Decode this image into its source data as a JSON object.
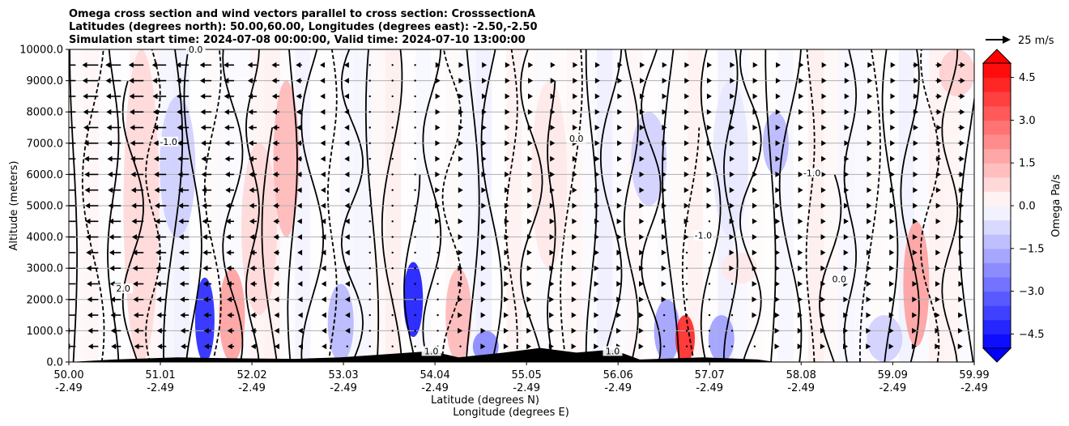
{
  "chart_data": {
    "type": "heatmap",
    "title_lines": [
      "Omega cross section and wind vectors parallel to cross section: CrosssectionA",
      "Latitudes (degrees north): 50.00,60.00, Longitudes (degrees east): -2.50,-2.50",
      "Simulation start time: 2024-07-08 00:00:00, Valid time: 2024-07-10 13:00:00"
    ],
    "xlabel": "Latitude (degrees N)",
    "xlabel2": "Longitude (degrees E)",
    "ylabel": "Altitude (meters)",
    "x_range": [
      50.0,
      59.99
    ],
    "y_range": [
      0,
      10000
    ],
    "x_ticks": [
      {
        "lat": "50.00",
        "lon": "-2.49",
        "value": 50.0
      },
      {
        "lat": "51.01",
        "lon": "-2.49",
        "value": 51.01
      },
      {
        "lat": "52.02",
        "lon": "-2.49",
        "value": 52.02
      },
      {
        "lat": "53.03",
        "lon": "-2.49",
        "value": 53.03
      },
      {
        "lat": "54.04",
        "lon": "-2.49",
        "value": 54.04
      },
      {
        "lat": "55.05",
        "lon": "-2.49",
        "value": 55.05
      },
      {
        "lat": "56.06",
        "lon": "-2.49",
        "value": 56.06
      },
      {
        "lat": "57.07",
        "lon": "-2.49",
        "value": 57.07
      },
      {
        "lat": "58.08",
        "lon": "-2.49",
        "value": 58.08
      },
      {
        "lat": "59.09",
        "lon": "-2.49",
        "value": 59.09
      },
      {
        "lat": "59.99",
        "lon": "-2.49",
        "value": 59.99
      }
    ],
    "y_ticks": [
      {
        "label": "0.0",
        "value": 0
      },
      {
        "label": "1000.0",
        "value": 1000
      },
      {
        "label": "2000.0",
        "value": 2000
      },
      {
        "label": "3000.0",
        "value": 3000
      },
      {
        "label": "4000.0",
        "value": 4000
      },
      {
        "label": "5000.0",
        "value": 5000
      },
      {
        "label": "6000.0",
        "value": 6000
      },
      {
        "label": "7000.0",
        "value": 7000
      },
      {
        "label": "8000.0",
        "value": 8000
      },
      {
        "label": "9000.0",
        "value": 9000
      },
      {
        "label": "10000.0",
        "value": 10000
      }
    ],
    "grid": "horizontal",
    "colorbar": {
      "label": "Omega Pa/s",
      "range": [
        -5.0,
        5.0
      ],
      "extend": "both",
      "levels": [
        -5.0,
        -4.5,
        -4.0,
        -3.5,
        -3.0,
        -2.5,
        -2.0,
        -1.5,
        -1.0,
        -0.5,
        0.0,
        0.5,
        1.0,
        1.5,
        2.0,
        2.5,
        3.0,
        3.5,
        4.0,
        4.5,
        5.0
      ],
      "tick_labels": [
        {
          "label": "4.5",
          "value": 4.5
        },
        {
          "label": "3.0",
          "value": 3.0
        },
        {
          "label": "1.5",
          "value": 1.5
        },
        {
          "label": "0.0",
          "value": 0.0
        },
        {
          "label": "−1.5",
          "value": -1.5
        },
        {
          "label": "−3.0",
          "value": -3.0
        },
        {
          "label": "−4.5",
          "value": -4.5
        }
      ],
      "colors": {
        "negative_max": "#0000ff",
        "positive_max": "#ff0000",
        "neutral": "#ffffff"
      }
    },
    "quiver_key": {
      "label": "25 m/s",
      "speed": 25
    },
    "omega_cells": [
      {
        "lat": 51.5,
        "alt_min": 0,
        "alt_max": 2700,
        "value": -4.5
      },
      {
        "lat": 51.2,
        "alt_min": 4000,
        "alt_max": 8500,
        "value": -1.0
      },
      {
        "lat": 50.8,
        "alt_min": 0,
        "alt_max": 10000,
        "value": 0.8
      },
      {
        "lat": 51.8,
        "alt_min": 0,
        "alt_max": 3000,
        "value": 2.0
      },
      {
        "lat": 52.4,
        "alt_min": 4000,
        "alt_max": 9000,
        "value": 1.5
      },
      {
        "lat": 52.1,
        "alt_min": 1500,
        "alt_max": 7000,
        "value": 0.8
      },
      {
        "lat": 53.0,
        "alt_min": 0,
        "alt_max": 2500,
        "value": -1.5
      },
      {
        "lat": 53.8,
        "alt_min": 800,
        "alt_max": 3200,
        "value": -4.8
      },
      {
        "lat": 54.3,
        "alt_min": 0,
        "alt_max": 3000,
        "value": 1.5
      },
      {
        "lat": 54.6,
        "alt_min": 0,
        "alt_max": 1000,
        "value": -2.5
      },
      {
        "lat": 55.3,
        "alt_min": 3000,
        "alt_max": 9000,
        "value": 0.5
      },
      {
        "lat": 56.4,
        "alt_min": 5000,
        "alt_max": 8000,
        "value": -1.0
      },
      {
        "lat": 56.6,
        "alt_min": 0,
        "alt_max": 2000,
        "value": -2.0
      },
      {
        "lat": 56.8,
        "alt_min": 0,
        "alt_max": 1500,
        "value": 4.5
      },
      {
        "lat": 57.2,
        "alt_min": 0,
        "alt_max": 1500,
        "value": -2.0
      },
      {
        "lat": 57.3,
        "alt_min": 4000,
        "alt_max": 9000,
        "value": -0.5
      },
      {
        "lat": 57.8,
        "alt_min": 6000,
        "alt_max": 8000,
        "value": -1.5
      },
      {
        "lat": 57.4,
        "alt_min": 2500,
        "alt_max": 3500,
        "value": 0.5
      },
      {
        "lat": 59.35,
        "alt_min": 500,
        "alt_max": 4500,
        "value": 2.0
      },
      {
        "lat": 59.0,
        "alt_min": 0,
        "alt_max": 1500,
        "value": -1.0
      },
      {
        "lat": 59.8,
        "alt_min": 8500,
        "alt_max": 10000,
        "value": 1.0
      }
    ],
    "wind_u_profile": [
      {
        "lat": 50.0,
        "u": -14
      },
      {
        "lat": 51.0,
        "u": -12
      },
      {
        "lat": 52.0,
        "u": -8
      },
      {
        "lat": 53.0,
        "u": -3
      },
      {
        "lat": 54.0,
        "u": 2
      },
      {
        "lat": 55.0,
        "u": 4
      },
      {
        "lat": 56.0,
        "u": 3
      },
      {
        "lat": 57.0,
        "u": 2
      },
      {
        "lat": 58.0,
        "u": 3
      },
      {
        "lat": 59.0,
        "u": 4
      },
      {
        "lat": 59.99,
        "u": 6
      }
    ],
    "terrain": [
      {
        "lat": 50.0,
        "alt": 0
      },
      {
        "lat": 50.5,
        "alt": 80
      },
      {
        "lat": 51.2,
        "alt": 150
      },
      {
        "lat": 51.8,
        "alt": 120
      },
      {
        "lat": 52.5,
        "alt": 100
      },
      {
        "lat": 53.0,
        "alt": 150
      },
      {
        "lat": 53.5,
        "alt": 250
      },
      {
        "lat": 54.0,
        "alt": 350
      },
      {
        "lat": 54.3,
        "alt": 150
      },
      {
        "lat": 54.8,
        "alt": 300
      },
      {
        "lat": 55.2,
        "alt": 450
      },
      {
        "lat": 55.6,
        "alt": 300
      },
      {
        "lat": 56.0,
        "alt": 400
      },
      {
        "lat": 56.3,
        "alt": 80
      },
      {
        "lat": 57.0,
        "alt": 150
      },
      {
        "lat": 57.6,
        "alt": 80
      },
      {
        "lat": 57.8,
        "alt": 0
      }
    ],
    "contour_labels": [
      {
        "text": "0.0",
        "lat": 51.4,
        "alt": 9950
      },
      {
        "text": "-1.0",
        "lat": 51.1,
        "alt": 7000
      },
      {
        "text": "2.0",
        "lat": 50.6,
        "alt": 2300
      },
      {
        "text": "0.0",
        "lat": 55.6,
        "alt": 7100
      },
      {
        "text": "-1.0",
        "lat": 58.2,
        "alt": 6000
      },
      {
        "text": "-1.0",
        "lat": 57.0,
        "alt": 4000
      },
      {
        "text": "0.0",
        "lat": 58.5,
        "alt": 2600
      },
      {
        "text": "1.0",
        "lat": 54.0,
        "alt": 300
      },
      {
        "text": "1.0",
        "lat": 56.0,
        "alt": 300
      }
    ]
  }
}
